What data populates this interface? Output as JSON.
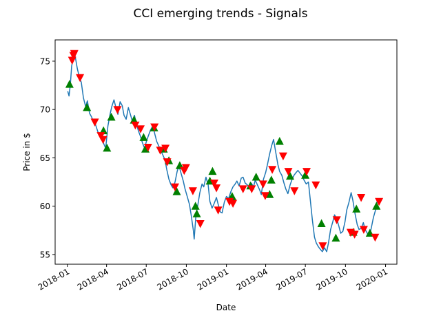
{
  "chart_data": {
    "type": "line",
    "title": "CCI emerging trends - Signals",
    "xlabel": "Date",
    "ylabel": "Price in $",
    "x_ticks": [
      "2018-01",
      "2018-04",
      "2018-07",
      "2018-10",
      "2019-01",
      "2019-04",
      "2019-07",
      "2019-10",
      "2020-01"
    ],
    "x_tick_dates": [
      "2018-01-01",
      "2018-04-01",
      "2018-07-01",
      "2018-10-01",
      "2019-01-01",
      "2019-04-01",
      "2019-07-01",
      "2019-10-01",
      "2020-01-01"
    ],
    "y_ticks": [
      55,
      60,
      65,
      70,
      75
    ],
    "xlim": [
      "2017-12-04",
      "2020-01-27"
    ],
    "ylim": [
      54,
      77.2
    ],
    "grid": false,
    "legend": "none",
    "colors": {
      "line": "#1f77b4",
      "buy": "#008000",
      "sell": "#ff0000"
    },
    "series": [
      {
        "type": "line",
        "points": [
          [
            "2018-01-02",
            71.9
          ],
          [
            "2018-01-05",
            71.4
          ],
          [
            "2018-01-08",
            72.6
          ],
          [
            "2018-01-11",
            74.5
          ],
          [
            "2018-01-15",
            75.4
          ],
          [
            "2018-01-19",
            75.5
          ],
          [
            "2018-01-24",
            74.2
          ],
          [
            "2018-01-29",
            73.3
          ],
          [
            "2018-02-02",
            72.8
          ],
          [
            "2018-02-07",
            71.2
          ],
          [
            "2018-02-12",
            70.3
          ],
          [
            "2018-02-16",
            70.9
          ],
          [
            "2018-02-21",
            69.6
          ],
          [
            "2018-02-26",
            69.2
          ],
          [
            "2018-03-02",
            68.7
          ],
          [
            "2018-03-07",
            68.4
          ],
          [
            "2018-03-12",
            67.7
          ],
          [
            "2018-03-16",
            67.4
          ],
          [
            "2018-03-21",
            67.0
          ],
          [
            "2018-03-26",
            66.4
          ],
          [
            "2018-03-30",
            66.0
          ],
          [
            "2018-04-04",
            68.3
          ],
          [
            "2018-04-09",
            69.5
          ],
          [
            "2018-04-13",
            70.3
          ],
          [
            "2018-04-18",
            71.0
          ],
          [
            "2018-04-23",
            70.1
          ],
          [
            "2018-04-27",
            69.5
          ],
          [
            "2018-05-02",
            70.8
          ],
          [
            "2018-05-07",
            70.4
          ],
          [
            "2018-05-11",
            69.4
          ],
          [
            "2018-05-16",
            69.0
          ],
          [
            "2018-05-21",
            70.2
          ],
          [
            "2018-05-25",
            69.6
          ],
          [
            "2018-05-30",
            68.8
          ],
          [
            "2018-06-04",
            69.4
          ],
          [
            "2018-06-08",
            68.6
          ],
          [
            "2018-06-13",
            67.8
          ],
          [
            "2018-06-18",
            67.2
          ],
          [
            "2018-06-22",
            66.6
          ],
          [
            "2018-06-27",
            66.0
          ],
          [
            "2018-07-02",
            66.8
          ],
          [
            "2018-07-06",
            67.3
          ],
          [
            "2018-07-11",
            67.9
          ],
          [
            "2018-07-16",
            68.3
          ],
          [
            "2018-07-20",
            67.6
          ],
          [
            "2018-07-25",
            66.7
          ],
          [
            "2018-07-30",
            66.2
          ],
          [
            "2018-08-03",
            65.8
          ],
          [
            "2018-08-08",
            65.3
          ],
          [
            "2018-08-13",
            64.8
          ],
          [
            "2018-08-17",
            63.8
          ],
          [
            "2018-08-22",
            62.8
          ],
          [
            "2018-08-27",
            62.2
          ],
          [
            "2018-08-31",
            61.9
          ],
          [
            "2018-09-05",
            62.5
          ],
          [
            "2018-09-10",
            63.6
          ],
          [
            "2018-09-14",
            64.2
          ],
          [
            "2018-09-19",
            63.4
          ],
          [
            "2018-09-24",
            62.6
          ],
          [
            "2018-09-28",
            61.8
          ],
          [
            "2018-10-03",
            61.0
          ],
          [
            "2018-10-08",
            60.2
          ],
          [
            "2018-10-12",
            59.1
          ],
          [
            "2018-10-17",
            57.5
          ],
          [
            "2018-10-19",
            56.6
          ],
          [
            "2018-10-23",
            59.0
          ],
          [
            "2018-10-28",
            60.3
          ],
          [
            "2018-11-01",
            61.4
          ],
          [
            "2018-11-06",
            62.3
          ],
          [
            "2018-11-10",
            62.0
          ],
          [
            "2018-11-15",
            63.0
          ],
          [
            "2018-11-20",
            62.2
          ],
          [
            "2018-11-24",
            60.5
          ],
          [
            "2018-11-29",
            59.8
          ],
          [
            "2018-12-04",
            60.3
          ],
          [
            "2018-12-09",
            60.9
          ],
          [
            "2018-12-13",
            60.2
          ],
          [
            "2018-12-18",
            59.4
          ],
          [
            "2018-12-22",
            59.3
          ],
          [
            "2018-12-27",
            60.4
          ],
          [
            "2019-01-01",
            61.0
          ],
          [
            "2019-01-06",
            60.8
          ],
          [
            "2019-01-11",
            61.5
          ],
          [
            "2019-01-16",
            62.0
          ],
          [
            "2019-01-21",
            62.3
          ],
          [
            "2019-01-25",
            62.6
          ],
          [
            "2019-01-30",
            62.1
          ],
          [
            "2019-02-04",
            62.9
          ],
          [
            "2019-02-08",
            63.0
          ],
          [
            "2019-02-13",
            62.4
          ],
          [
            "2019-02-18",
            62.2
          ],
          [
            "2019-02-22",
            61.9
          ],
          [
            "2019-02-27",
            62.4
          ],
          [
            "2019-03-04",
            62.0
          ],
          [
            "2019-03-08",
            62.7
          ],
          [
            "2019-03-13",
            62.2
          ],
          [
            "2019-03-18",
            61.7
          ],
          [
            "2019-03-22",
            61.2
          ],
          [
            "2019-03-27",
            62.8
          ],
          [
            "2019-04-01",
            63.5
          ],
          [
            "2019-04-05",
            64.3
          ],
          [
            "2019-04-10",
            65.4
          ],
          [
            "2019-04-15",
            66.3
          ],
          [
            "2019-04-19",
            66.9
          ],
          [
            "2019-04-24",
            65.6
          ],
          [
            "2019-04-29",
            64.3
          ],
          [
            "2019-05-03",
            63.6
          ],
          [
            "2019-05-08",
            63.2
          ],
          [
            "2019-05-13",
            62.4
          ],
          [
            "2019-05-17",
            61.8
          ],
          [
            "2019-05-22",
            61.3
          ],
          [
            "2019-05-27",
            62.2
          ],
          [
            "2019-05-31",
            62.7
          ],
          [
            "2019-06-05",
            63.2
          ],
          [
            "2019-06-10",
            63.5
          ],
          [
            "2019-06-14",
            63.7
          ],
          [
            "2019-06-19",
            63.4
          ],
          [
            "2019-06-24",
            63.1
          ],
          [
            "2019-06-28",
            62.7
          ],
          [
            "2019-07-03",
            62.3
          ],
          [
            "2019-07-08",
            62.5
          ],
          [
            "2019-07-12",
            60.8
          ],
          [
            "2019-07-17",
            58.6
          ],
          [
            "2019-07-22",
            56.8
          ],
          [
            "2019-07-26",
            56.2
          ],
          [
            "2019-07-31",
            55.8
          ],
          [
            "2019-08-05",
            55.5
          ],
          [
            "2019-08-09",
            55.3
          ],
          [
            "2019-08-14",
            55.7
          ],
          [
            "2019-08-19",
            55.3
          ],
          [
            "2019-08-23",
            56.2
          ],
          [
            "2019-08-28",
            57.6
          ],
          [
            "2019-09-02",
            58.4
          ],
          [
            "2019-09-06",
            59.1
          ],
          [
            "2019-09-11",
            58.7
          ],
          [
            "2019-09-16",
            57.9
          ],
          [
            "2019-09-20",
            57.2
          ],
          [
            "2019-09-25",
            57.4
          ],
          [
            "2019-09-30",
            58.4
          ],
          [
            "2019-10-04",
            59.6
          ],
          [
            "2019-10-09",
            60.4
          ],
          [
            "2019-10-14",
            61.4
          ],
          [
            "2019-10-18",
            60.6
          ],
          [
            "2019-10-23",
            59.2
          ],
          [
            "2019-10-28",
            58.1
          ],
          [
            "2019-11-01",
            57.6
          ],
          [
            "2019-11-06",
            57.7
          ],
          [
            "2019-11-11",
            58.3
          ],
          [
            "2019-11-15",
            57.6
          ],
          [
            "2019-11-20",
            57.2
          ],
          [
            "2019-11-25",
            56.9
          ],
          [
            "2019-11-29",
            57.7
          ],
          [
            "2019-12-04",
            58.8
          ],
          [
            "2019-12-09",
            59.6
          ],
          [
            "2019-12-13",
            60.5
          ]
        ]
      },
      {
        "type": "scatter",
        "marker": "triangle-up",
        "points": [
          [
            "2018-01-06",
            72.6
          ],
          [
            "2018-02-15",
            70.2
          ],
          [
            "2018-03-25",
            67.8
          ],
          [
            "2018-04-02",
            66.0
          ],
          [
            "2018-04-12",
            69.2
          ],
          [
            "2018-06-03",
            68.9
          ],
          [
            "2018-06-25",
            67.1
          ],
          [
            "2018-06-29",
            65.9
          ],
          [
            "2018-07-19",
            68.1
          ],
          [
            "2018-08-10",
            65.9
          ],
          [
            "2018-08-22",
            64.7
          ],
          [
            "2018-09-09",
            61.5
          ],
          [
            "2018-09-16",
            64.2
          ],
          [
            "2018-10-22",
            60.0
          ],
          [
            "2018-10-25",
            59.2
          ],
          [
            "2018-11-24",
            62.6
          ],
          [
            "2018-11-30",
            63.6
          ],
          [
            "2019-01-14",
            61.0
          ],
          [
            "2019-02-25",
            62.1
          ],
          [
            "2019-03-10",
            63.0
          ],
          [
            "2019-04-10",
            61.2
          ],
          [
            "2019-04-14",
            62.7
          ],
          [
            "2019-05-03",
            66.7
          ],
          [
            "2019-05-27",
            63.1
          ],
          [
            "2019-07-01",
            63.2
          ],
          [
            "2019-08-07",
            58.2
          ],
          [
            "2019-09-09",
            56.7
          ],
          [
            "2019-10-19",
            57.3
          ],
          [
            "2019-10-26",
            59.7
          ],
          [
            "2019-11-26",
            57.2
          ],
          [
            "2019-12-11",
            60.0
          ]
        ]
      },
      {
        "type": "scatter",
        "marker": "triangle-down",
        "points": [
          [
            "2018-01-12",
            75.1
          ],
          [
            "2018-01-15",
            75.6
          ],
          [
            "2018-01-17",
            75.8
          ],
          [
            "2018-01-30",
            73.3
          ],
          [
            "2018-03-05",
            68.7
          ],
          [
            "2018-03-19",
            67.3
          ],
          [
            "2018-03-24",
            66.9
          ],
          [
            "2018-04-26",
            70.0
          ],
          [
            "2018-06-06",
            68.4
          ],
          [
            "2018-06-18",
            68.0
          ],
          [
            "2018-07-05",
            66.1
          ],
          [
            "2018-07-20",
            68.2
          ],
          [
            "2018-08-02",
            65.8
          ],
          [
            "2018-08-14",
            66.0
          ],
          [
            "2018-08-18",
            64.6
          ],
          [
            "2018-09-05",
            62.0
          ],
          [
            "2018-09-26",
            63.7
          ],
          [
            "2018-09-30",
            64.0
          ],
          [
            "2018-10-16",
            61.6
          ],
          [
            "2018-11-02",
            58.2
          ],
          [
            "2018-12-04",
            62.4
          ],
          [
            "2018-12-09",
            61.9
          ],
          [
            "2018-12-13",
            59.6
          ],
          [
            "2019-01-08",
            60.5
          ],
          [
            "2019-01-16",
            60.3
          ],
          [
            "2019-02-08",
            61.8
          ],
          [
            "2019-02-28",
            61.8
          ],
          [
            "2019-03-26",
            62.3
          ],
          [
            "2019-03-31",
            61.1
          ],
          [
            "2019-04-16",
            63.8
          ],
          [
            "2019-05-11",
            65.2
          ],
          [
            "2019-05-23",
            63.6
          ],
          [
            "2019-06-06",
            61.6
          ],
          [
            "2019-07-04",
            63.6
          ],
          [
            "2019-07-25",
            62.2
          ],
          [
            "2019-08-10",
            55.9
          ],
          [
            "2019-09-11",
            58.6
          ],
          [
            "2019-10-13",
            57.3
          ],
          [
            "2019-10-22",
            57.1
          ],
          [
            "2019-11-06",
            60.9
          ],
          [
            "2019-11-12",
            57.6
          ],
          [
            "2019-12-08",
            56.8
          ],
          [
            "2019-12-17",
            60.5
          ]
        ]
      }
    ]
  }
}
